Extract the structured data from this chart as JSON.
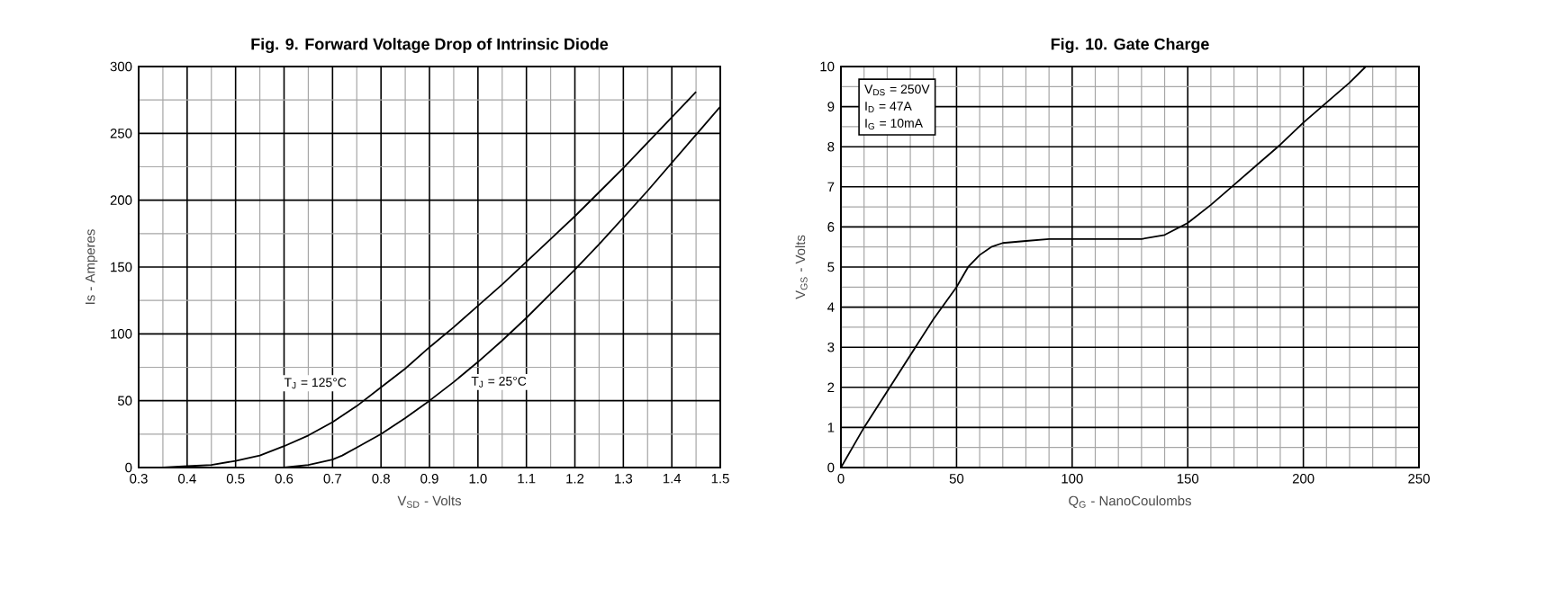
{
  "chart_data": [
    {
      "type": "line",
      "title": "Fig. 9. Forward Voltage Drop of Intrinsic Diode",
      "xlabel": "V$_{SD}$ - Volts",
      "ylabel": "Is - Amperes",
      "xlim": [
        0.3,
        1.5
      ],
      "ylim": [
        0,
        300
      ],
      "xticks": [
        0.3,
        0.4,
        0.5,
        0.6,
        0.7,
        0.8,
        0.9,
        {
          "value": 1.0,
          "label": "1.0"
        },
        1.1,
        1.2,
        1.3,
        1.4,
        1.5
      ],
      "yticks": [
        0,
        50,
        100,
        150,
        200,
        250,
        300
      ],
      "grid": true,
      "line_style": "solid",
      "series": [
        {
          "name": "T$_{J}$ = 125°C",
          "color": "#000000",
          "x": [
            0.35,
            0.4,
            0.45,
            0.5,
            0.55,
            0.6,
            0.65,
            0.7,
            0.75,
            0.8,
            0.85,
            0.9,
            0.95,
            1.0,
            1.05,
            1.1,
            1.15,
            1.2,
            1.25,
            1.3,
            1.35,
            1.4,
            1.45
          ],
          "values": [
            0,
            1,
            2,
            5,
            9,
            16,
            24,
            34,
            46,
            60,
            74,
            90,
            105,
            121,
            137,
            154,
            171,
            188,
            206,
            224,
            243,
            262,
            281
          ]
        },
        {
          "name": "T$_{J}$ = 25°C",
          "color": "#000000",
          "x": [
            0.6,
            0.65,
            0.7,
            0.72,
            0.75,
            0.8,
            0.85,
            0.9,
            0.95,
            1.0,
            1.05,
            1.1,
            1.15,
            1.2,
            1.25,
            1.3,
            1.35,
            1.4,
            1.45,
            1.5
          ],
          "values": [
            0,
            2,
            6,
            9,
            15,
            25,
            37,
            50,
            64,
            79,
            95,
            112,
            130,
            148,
            167,
            187,
            207,
            228,
            249,
            270
          ]
        }
      ]
    },
    {
      "type": "line",
      "title": "Fig. 10. Gate Charge",
      "xlabel": "Q$_{G}$ - NanoCoulombs",
      "ylabel": "V$_{GS}$ - Volts",
      "xlim": [
        0,
        250
      ],
      "ylim": [
        0,
        10
      ],
      "xticks": [
        0,
        50,
        100,
        150,
        200,
        250
      ],
      "yticks": [
        0,
        1,
        2,
        3,
        4,
        5,
        6,
        7,
        8,
        9,
        10
      ],
      "grid": true,
      "line_style": "solid",
      "annotations": [
        "V$_{DS}$ = 250V",
        "I$_{D}$ = 47A",
        "I$_{G}$ = 10mA"
      ],
      "series": [
        {
          "color": "#000000",
          "x": [
            0,
            10,
            20,
            30,
            40,
            50,
            55,
            60,
            65,
            70,
            80,
            90,
            130,
            140,
            150,
            160,
            170,
            180,
            190,
            200,
            210,
            220,
            227
          ],
          "values": [
            0,
            1,
            1.9,
            2.8,
            3.7,
            4.5,
            5,
            5.3,
            5.5,
            5.6,
            5.65,
            5.7,
            5.7,
            5.8,
            6.1,
            6.55,
            7.05,
            7.55,
            8.05,
            8.6,
            9.1,
            9.6,
            10
          ]
        }
      ]
    }
  ]
}
